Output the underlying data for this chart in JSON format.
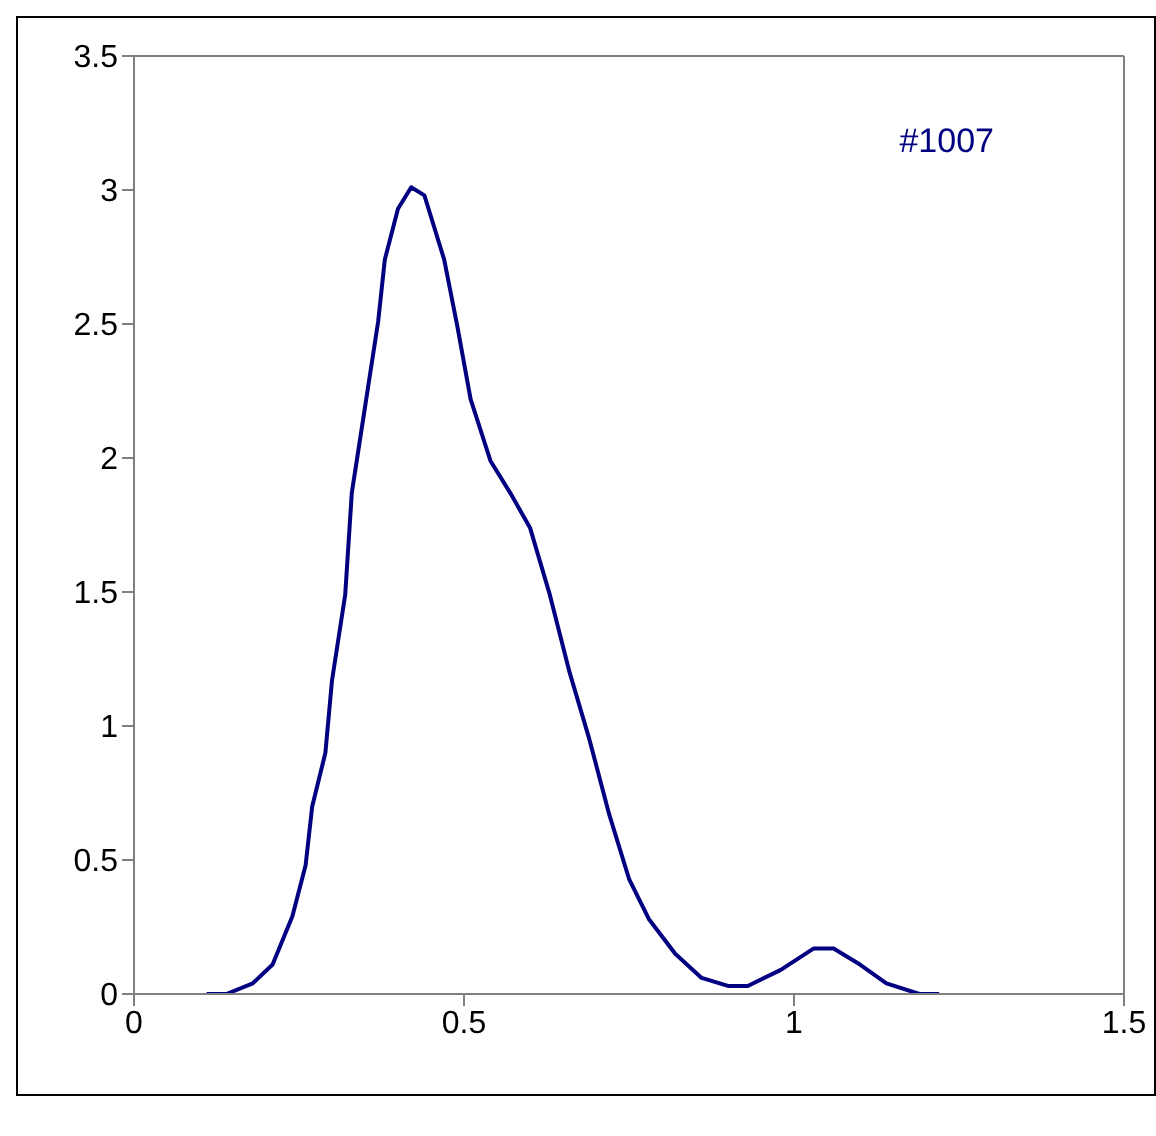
{
  "chart_data": {
    "type": "line",
    "annotations": [
      "#1007"
    ],
    "x": [
      0.11,
      0.14,
      0.18,
      0.21,
      0.24,
      0.26,
      0.27,
      0.29,
      0.3,
      0.32,
      0.33,
      0.35,
      0.37,
      0.38,
      0.4,
      0.42,
      0.44,
      0.47,
      0.49,
      0.51,
      0.54,
      0.57,
      0.6,
      0.63,
      0.66,
      0.69,
      0.72,
      0.75,
      0.78,
      0.82,
      0.86,
      0.9,
      0.93,
      0.98,
      1.03,
      1.06,
      1.1,
      1.14,
      1.19,
      1.22
    ],
    "series": [
      {
        "color": "#000080",
        "values": [
          0,
          0,
          0.04,
          0.11,
          0.29,
          0.48,
          0.7,
          0.9,
          1.17,
          1.49,
          1.87,
          2.19,
          2.51,
          2.74,
          2.93,
          3.01,
          2.98,
          2.74,
          2.49,
          2.22,
          1.99,
          1.87,
          1.74,
          1.49,
          1.2,
          0.95,
          0.67,
          0.43,
          0.28,
          0.15,
          0.06,
          0.03,
          0.03,
          0.09,
          0.17,
          0.17,
          0.11,
          0.04,
          0,
          0
        ]
      }
    ],
    "xlim": [
      0,
      1.5
    ],
    "xticks": [
      0,
      0.5,
      1,
      1.5
    ],
    "ylim": [
      0,
      3.5
    ],
    "yticks": [
      0,
      0.5,
      1,
      1.5,
      2,
      2.5,
      3,
      3.5
    ],
    "grid": false,
    "legend": false,
    "marker": "none",
    "line_style": "solid"
  }
}
